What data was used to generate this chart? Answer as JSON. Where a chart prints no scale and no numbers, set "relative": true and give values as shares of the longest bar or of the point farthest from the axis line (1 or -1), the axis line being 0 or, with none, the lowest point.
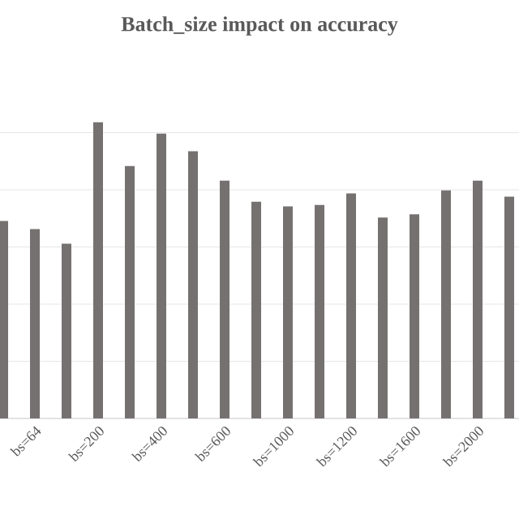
{
  "chart_data": {
    "type": "bar",
    "title": "Batch_size impact on accuracy",
    "categories": [
      null,
      "bs=64",
      null,
      "bs=200",
      null,
      "bs=400",
      null,
      "bs=600",
      null,
      "bs=1000",
      null,
      "bs=1200",
      null,
      "bs=1600",
      null,
      "bs=2000",
      null
    ],
    "values": [
      0.667,
      0.639,
      0.59,
      1,
      0.852,
      0.962,
      0.902,
      0.803,
      0.732,
      0.716,
      0.721,
      0.76,
      0.678,
      0.689,
      0.77,
      0.803,
      0.749
    ],
    "color": "#767171",
    "relative": true,
    "grid": "y"
  }
}
